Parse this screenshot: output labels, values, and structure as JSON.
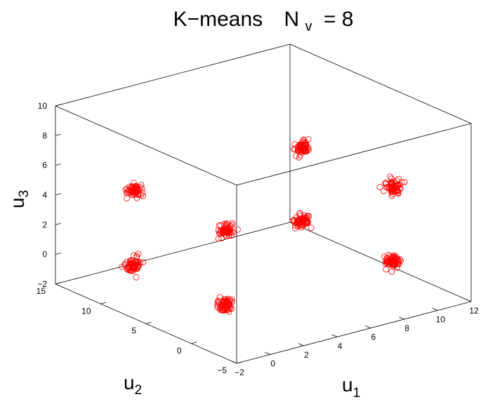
{
  "chart_data": {
    "type": "scatter",
    "projection": "3d",
    "title": {
      "main": "K−means",
      "var": "N",
      "var_sub": "v",
      "eq": "= 8"
    },
    "axes": {
      "x": {
        "label": "u",
        "label_sub": "1",
        "range": [
          -2,
          12
        ],
        "ticks": [
          -2,
          0,
          2,
          4,
          6,
          8,
          10,
          12
        ]
      },
      "y": {
        "label": "u",
        "label_sub": "2",
        "range": [
          -5,
          15
        ],
        "ticks": [
          -5,
          0,
          5,
          10,
          15
        ]
      },
      "z": {
        "label": "u",
        "label_sub": "3",
        "range": [
          -2,
          10
        ],
        "ticks": [
          -2,
          0,
          2,
          4,
          6,
          8,
          10
        ]
      }
    },
    "box": true,
    "grid": false,
    "marker": {
      "shape": "open-circle",
      "color": "#ff0000"
    },
    "clusters": [
      {
        "center": [
          0,
          0,
          0
        ],
        "points_per_cluster": 60
      },
      {
        "center": [
          10,
          0,
          0
        ],
        "points_per_cluster": 60
      },
      {
        "center": [
          0,
          10,
          0
        ],
        "points_per_cluster": 60
      },
      {
        "center": [
          10,
          10,
          0
        ],
        "points_per_cluster": 60
      },
      {
        "center": [
          0,
          0,
          5
        ],
        "points_per_cluster": 60
      },
      {
        "center": [
          10,
          0,
          5
        ],
        "points_per_cluster": 60
      },
      {
        "center": [
          0,
          10,
          5
        ],
        "points_per_cluster": 60
      },
      {
        "center": [
          10,
          10,
          5
        ],
        "points_per_cluster": 60
      }
    ]
  }
}
